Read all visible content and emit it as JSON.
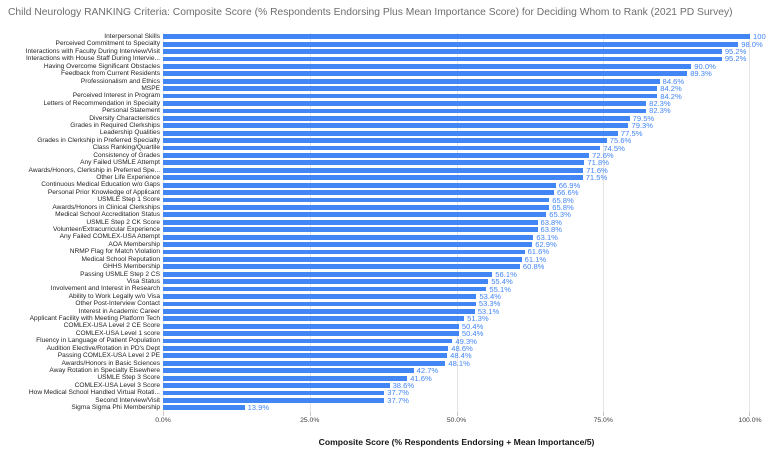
{
  "title": "Child Neurology RANKING Criteria: Composite Score (% Respondents Endorsing Plus Mean Importance Score) for Deciding Whom to Rank (2021 PD Survey)",
  "chart_data": {
    "type": "bar",
    "orientation": "horizontal",
    "title": "Child Neurology RANKING Criteria: Composite Score (% Respondents Endorsing Plus Mean Importance Score) for Deciding Whom to Rank (2021 PD Survey)",
    "xlabel": "Composite Score (% Respondents Endorsing + Mean Importance/5)",
    "xlim": [
      0,
      100
    ],
    "grid": true,
    "legend": "none",
    "bar_color": "#4285f4",
    "annotation_color": "#4285f4",
    "x_ticks": [
      {
        "pct": 0,
        "label": "0.0%"
      },
      {
        "pct": 25,
        "label": "25.0%"
      },
      {
        "pct": 50,
        "label": "50.0%"
      },
      {
        "pct": 75,
        "label": "75.0%"
      },
      {
        "pct": 100,
        "label": "100.0%"
      }
    ],
    "categories": [
      "Interpersonal Skills",
      "Perceived Commitment to Specialty",
      "Interactions with Faculty During Interview/Visit",
      "Interactions with House Staff During Intervie...",
      "Having Overcome Significant Obstacles",
      "Feedback from Current Residents",
      "Professionalism and Ethics",
      "MSPE",
      "Perceived Interest in Program",
      "Letters of Recommendation in Specialty",
      "Personal Statement",
      "Diversity Characteristics",
      "Grades in Required Clerkships",
      "Leadership Qualities",
      "Grades in Clerkship in Preferred Specialty",
      "Class Ranking/Quartile",
      "Consistency of Grades",
      "Any Failed USMLE Attempt",
      "Awards/Honors, Clerkship in Preferred Spe...",
      "Other Life Experience",
      "Continuous Medical Education w/o Gaps",
      "Personal Prior Knowledge of Applicant",
      "USMLE Step 1 Score",
      "Awards/Honors in Clinical Clerkships",
      "Medical School Accreditation Status",
      "USMLE Step 2 CK Score",
      "Volunteer/Extracurricular Experience",
      "Any Failed COMLEX-USA Attempt",
      "AOA Membership",
      "NRMP Flag for Match Violation",
      "Medical School Reputation",
      "GHHS Membership",
      "Passing USMLE Step 2 CS",
      "Visa Status",
      "Involvement and Interest in Research",
      "Ability to Work Legally w/o Visa",
      "Other Post-Interview Contact",
      "Interest in Academic Career",
      "Applicant Facility with Meeting Platform Tech",
      "COMLEX-USA Level 2 CE Score",
      "COMLEX-USA Level 1 score",
      "Fluency in Language of Patient Population",
      "Audition Elective/Rotation in PD's Dept",
      "Passing COMLEX-USA Level 2 PE",
      "Awards/Honors in Basic Sciences",
      "Away Rotation in Specialty Elsewhere",
      "USMLE Step 3 Score",
      "COMLEX-USA Level 3 Score",
      "How Medical School Handled Virtual Rotati...",
      "Second Interview/Visit",
      "Sigma Sigma Phi Membership"
    ],
    "values": [
      100,
      98.0,
      95.2,
      95.2,
      90.0,
      89.3,
      84.6,
      84.2,
      84.2,
      82.3,
      82.3,
      79.5,
      79.3,
      77.5,
      75.6,
      74.5,
      72.6,
      71.8,
      71.6,
      71.5,
      66.9,
      66.6,
      65.8,
      65.8,
      65.3,
      63.8,
      63.8,
      63.1,
      62.9,
      61.6,
      61.1,
      60.8,
      56.1,
      55.4,
      55.1,
      53.4,
      53.3,
      53.1,
      51.3,
      50.4,
      50.4,
      49.3,
      48.6,
      48.4,
      48.1,
      42.7,
      41.6,
      38.6,
      37.7,
      37.7,
      13.9
    ],
    "value_labels": [
      "100",
      "98.0%",
      "95.2%",
      "95.2%",
      "90.0%",
      "89.3%",
      "84.6%",
      "84.2%",
      "84.2%",
      "82.3%",
      "82.3%",
      "79.5%",
      "79.3%",
      "77.5%",
      "75.6%",
      "74.5%",
      "72.6%",
      "71.8%",
      "71.6%",
      "71.5%",
      "66.9%",
      "66.6%",
      "65.8%",
      "65.8%",
      "65.3%",
      "63.8%",
      "63.8%",
      "63.1%",
      "62.9%",
      "61.6%",
      "61.1%",
      "60.8%",
      "56.1%",
      "55.4%",
      "55.1%",
      "53.4%",
      "53.3%",
      "53.1%",
      "51.3%",
      "50.4%",
      "50.4%",
      "49.3%",
      "48.6%",
      "48.4%",
      "48.1%",
      "42.7%",
      "41.6%",
      "38.6%",
      "37.7%",
      "37.7%",
      "13.9%"
    ]
  }
}
